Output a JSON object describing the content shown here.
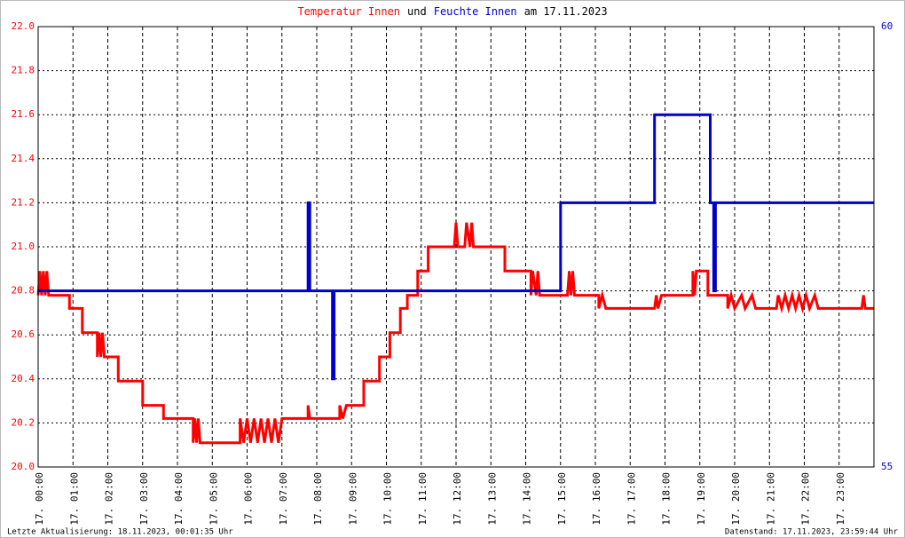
{
  "chart_data": {
    "type": "line",
    "title_parts": [
      {
        "text": "Temperatur Innen",
        "color": "#ff0000"
      },
      {
        "text": "und",
        "color": "#000000"
      },
      {
        "text": "Feuchte Innen",
        "color": "#0000cc"
      },
      {
        "text": "am 17.11.2023",
        "color": "#000000"
      }
    ],
    "footer_left": "Letzte Aktualisierung: 18.11.2023, 00:01:35 Uhr",
    "footer_right": "Datenstand: 17.11.2023, 23:59:44 Uhr",
    "xlim": [
      0,
      24
    ],
    "xticks": [
      {
        "value": 0,
        "label": "17. 00:00"
      },
      {
        "value": 1,
        "label": "17. 01:00"
      },
      {
        "value": 2,
        "label": "17. 02:00"
      },
      {
        "value": 3,
        "label": "17. 03:00"
      },
      {
        "value": 4,
        "label": "17. 04:00"
      },
      {
        "value": 5,
        "label": "17. 05:00"
      },
      {
        "value": 6,
        "label": "17. 06:00"
      },
      {
        "value": 7,
        "label": "17. 07:00"
      },
      {
        "value": 8,
        "label": "17. 08:00"
      },
      {
        "value": 9,
        "label": "17. 09:00"
      },
      {
        "value": 10,
        "label": "17. 10:00"
      },
      {
        "value": 11,
        "label": "17. 11:00"
      },
      {
        "value": 12,
        "label": "17. 12:00"
      },
      {
        "value": 13,
        "label": "17. 13:00"
      },
      {
        "value": 14,
        "label": "17. 14:00"
      },
      {
        "value": 15,
        "label": "17. 15:00"
      },
      {
        "value": 16,
        "label": "17. 16:00"
      },
      {
        "value": 17,
        "label": "17. 17:00"
      },
      {
        "value": 18,
        "label": "17. 18:00"
      },
      {
        "value": 19,
        "label": "17. 19:00"
      },
      {
        "value": 20,
        "label": "17. 20:00"
      },
      {
        "value": 21,
        "label": "17. 21:00"
      },
      {
        "value": 22,
        "label": "17. 22:00"
      },
      {
        "value": 23,
        "label": "17. 23:00"
      }
    ],
    "ylim": [
      20.0,
      22.0
    ],
    "yticks": [
      {
        "value": 20.0,
        "label": "20.0"
      },
      {
        "value": 20.2,
        "label": "20.2"
      },
      {
        "value": 20.4,
        "label": "20.4"
      },
      {
        "value": 20.6,
        "label": "20.6"
      },
      {
        "value": 20.8,
        "label": "20.8"
      },
      {
        "value": 21.0,
        "label": "21.0"
      },
      {
        "value": 21.2,
        "label": "21.2"
      },
      {
        "value": 21.4,
        "label": "21.4"
      },
      {
        "value": 21.6,
        "label": "21.6"
      },
      {
        "value": 21.8,
        "label": "21.8"
      },
      {
        "value": 22.0,
        "label": "22.0"
      }
    ],
    "y_color": "#ff0000",
    "y2lim": [
      55,
      60
    ],
    "y2ticks": [
      55,
      60
    ],
    "y2_color": "#0000cc",
    "grid": true,
    "series": [
      {
        "name": "Temperatur Innen",
        "color": "#ff0000",
        "axis": "y",
        "x": [
          0,
          0.05,
          0.1,
          0.15,
          0.2,
          0.25,
          0.3,
          0.9,
          0.9,
          1.27,
          1.27,
          1.7,
          1.7,
          1.75,
          1.8,
          1.85,
          1.9,
          2.3,
          2.3,
          3.0,
          3.0,
          3.6,
          3.6,
          4.45,
          4.45,
          4.5,
          4.55,
          4.6,
          4.65,
          5.8,
          5.8,
          5.9,
          6.0,
          6.1,
          6.2,
          6.3,
          6.4,
          6.5,
          6.6,
          6.7,
          6.8,
          6.9,
          7.0,
          7.75,
          7.75,
          7.8,
          8.66,
          8.66,
          8.75,
          8.85,
          9.35,
          9.35,
          9.8,
          9.8,
          10.1,
          10.1,
          10.4,
          10.4,
          10.6,
          10.6,
          10.9,
          10.9,
          11.2,
          11.2,
          11.95,
          12.0,
          12.05,
          12.25,
          12.3,
          12.4,
          12.45,
          12.5,
          13.4,
          13.4,
          14.15,
          14.15,
          14.2,
          14.3,
          14.35,
          14.4,
          15.2,
          15.25,
          15.3,
          15.35,
          15.4,
          16.1,
          16.1,
          16.2,
          16.3,
          17.7,
          17.75,
          17.8,
          17.9,
          18.8,
          18.8,
          18.85,
          18.9,
          19.23,
          19.23,
          19.8,
          19.8,
          19.9,
          20.0,
          20.2,
          20.3,
          20.5,
          20.6,
          21.2,
          21.25,
          21.35,
          21.45,
          21.55,
          21.65,
          21.75,
          21.85,
          21.95,
          22.05,
          22.15,
          22.3,
          22.4,
          23.65,
          23.7,
          23.75,
          24
        ],
        "values": [
          20.78,
          20.89,
          20.78,
          20.89,
          20.78,
          20.89,
          20.78,
          20.78,
          20.72,
          20.72,
          20.61,
          20.61,
          20.5,
          20.61,
          20.5,
          20.61,
          20.5,
          20.5,
          20.39,
          20.39,
          20.28,
          20.28,
          20.22,
          20.22,
          20.11,
          20.22,
          20.11,
          20.22,
          20.11,
          20.11,
          20.22,
          20.11,
          20.22,
          20.11,
          20.22,
          20.11,
          20.22,
          20.11,
          20.22,
          20.11,
          20.22,
          20.11,
          20.22,
          20.22,
          20.28,
          20.22,
          20.22,
          20.28,
          20.22,
          20.28,
          20.28,
          20.39,
          20.39,
          20.5,
          20.5,
          20.61,
          20.61,
          20.72,
          20.72,
          20.78,
          20.78,
          20.89,
          20.89,
          21.0,
          21.0,
          21.11,
          21.0,
          21.0,
          21.11,
          21.0,
          21.11,
          21.0,
          21.0,
          20.89,
          20.89,
          20.78,
          20.89,
          20.78,
          20.89,
          20.78,
          20.78,
          20.89,
          20.78,
          20.89,
          20.78,
          20.78,
          20.72,
          20.78,
          20.72,
          20.72,
          20.78,
          20.72,
          20.78,
          20.78,
          20.89,
          20.78,
          20.89,
          20.89,
          20.78,
          20.78,
          20.72,
          20.78,
          20.72,
          20.78,
          20.72,
          20.78,
          20.72,
          20.72,
          20.78,
          20.72,
          20.78,
          20.72,
          20.78,
          20.72,
          20.78,
          20.72,
          20.78,
          20.72,
          20.78,
          20.72,
          20.72,
          20.78,
          20.72,
          20.72
        ]
      },
      {
        "name": "Feuchte Innen",
        "color": "#0000cc",
        "axis": "y2",
        "x": [
          0,
          7.75,
          7.75,
          7.8,
          7.8,
          8.45,
          8.45,
          8.5,
          8.5,
          15,
          15,
          17.7,
          17.7,
          19.3,
          19.3,
          19.4,
          19.4,
          19.45,
          19.45,
          24
        ],
        "values": [
          57,
          57,
          58,
          58,
          57,
          57,
          56,
          56,
          57,
          57,
          58,
          58,
          59,
          59,
          58,
          58,
          57,
          57,
          58,
          58
        ]
      }
    ]
  }
}
